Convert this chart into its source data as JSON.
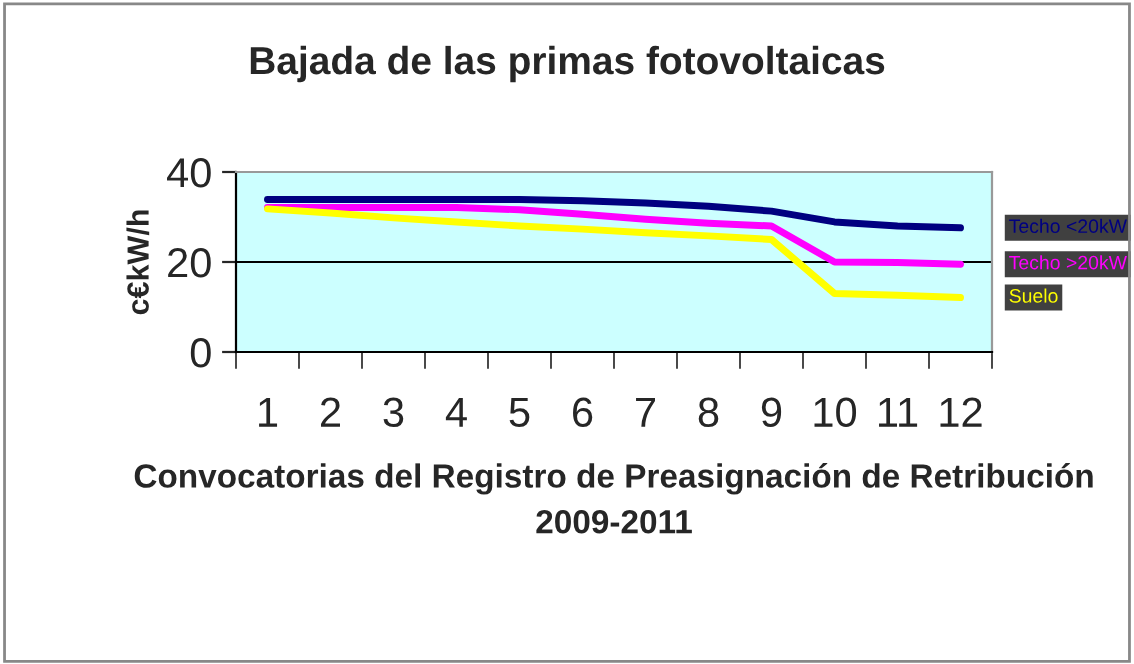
{
  "chart_data": {
    "type": "line",
    "title": "Bajada de las primas fotovoltaicas",
    "xlabel": "Convocatorias del Registro de Preasignación de Retribución 2009-2011",
    "ylabel": "c€kW/h",
    "categories": [
      "1",
      "2",
      "3",
      "4",
      "5",
      "6",
      "7",
      "8",
      "9",
      "10",
      "11",
      "12"
    ],
    "series": [
      {
        "name": "Techo <20kW",
        "color": "#000080",
        "values": [
          33.9,
          33.9,
          33.9,
          33.9,
          33.9,
          33.6,
          33.1,
          32.4,
          31.3,
          28.9,
          28,
          27.6
        ]
      },
      {
        "name": "Techo >20kW",
        "color": "#ff00ff",
        "values": [
          32.1,
          32.1,
          32.1,
          32.1,
          31.6,
          30.6,
          29.5,
          28.6,
          28,
          20,
          19.9,
          19.5
        ]
      },
      {
        "name": "Suelo",
        "color": "#ffff00",
        "values": [
          31.8,
          30.9,
          29.8,
          28.9,
          28,
          27.3,
          26.5,
          25.8,
          25,
          13,
          12.6,
          12.1
        ]
      }
    ],
    "ylim": [
      0,
      40
    ],
    "yticks": [
      0,
      20,
      40
    ],
    "grid": "y",
    "legend": "right",
    "marker": "none",
    "line_style": "solid"
  }
}
